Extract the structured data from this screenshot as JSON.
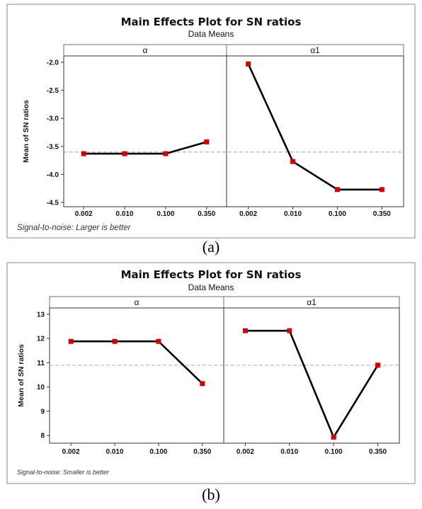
{
  "chart_data": [
    {
      "type": "line",
      "title": "Main Effects Plot for SN ratios",
      "subtitle": "Data Means",
      "ylabel": "Mean of SN ratios",
      "ylim": [
        -4.5,
        -2.0
      ],
      "yticks": [
        "-2.0",
        "-2.5",
        "-3.0",
        "-3.5",
        "-4.0",
        "-4.5"
      ],
      "reference_line": -3.6,
      "footnote": "Signal-to-noise: Larger is better",
      "caption": "(a)",
      "panels": [
        {
          "name": "α",
          "categories": [
            "0.002",
            "0.010",
            "0.100",
            "0.350"
          ],
          "values": [
            -3.63,
            -3.63,
            -3.63,
            -3.42
          ]
        },
        {
          "name": "α1",
          "categories": [
            "0.002",
            "0.010",
            "0.100",
            "0.350"
          ],
          "values": [
            -2.03,
            -3.77,
            -4.27,
            -4.27
          ]
        }
      ]
    },
    {
      "type": "line",
      "title": "Main Effects Plot for SN ratios",
      "subtitle": "Data Means",
      "ylabel": "Mean of SN ratios",
      "ylim": [
        7.8,
        13.2
      ],
      "yticks": [
        "13",
        "12",
        "11",
        "10",
        "9",
        "8"
      ],
      "reference_line": 10.9,
      "footnote": "Signal-to-noise: Smaller is better",
      "caption": "(b)",
      "panels": [
        {
          "name": "α",
          "categories": [
            "0.002",
            "0.010",
            "0.100",
            "0.350"
          ],
          "values": [
            11.88,
            11.88,
            11.88,
            10.14
          ]
        },
        {
          "name": "α1",
          "categories": [
            "0.002",
            "0.010",
            "0.100",
            "0.350"
          ],
          "values": [
            12.32,
            12.32,
            7.93,
            10.9
          ]
        }
      ]
    }
  ]
}
